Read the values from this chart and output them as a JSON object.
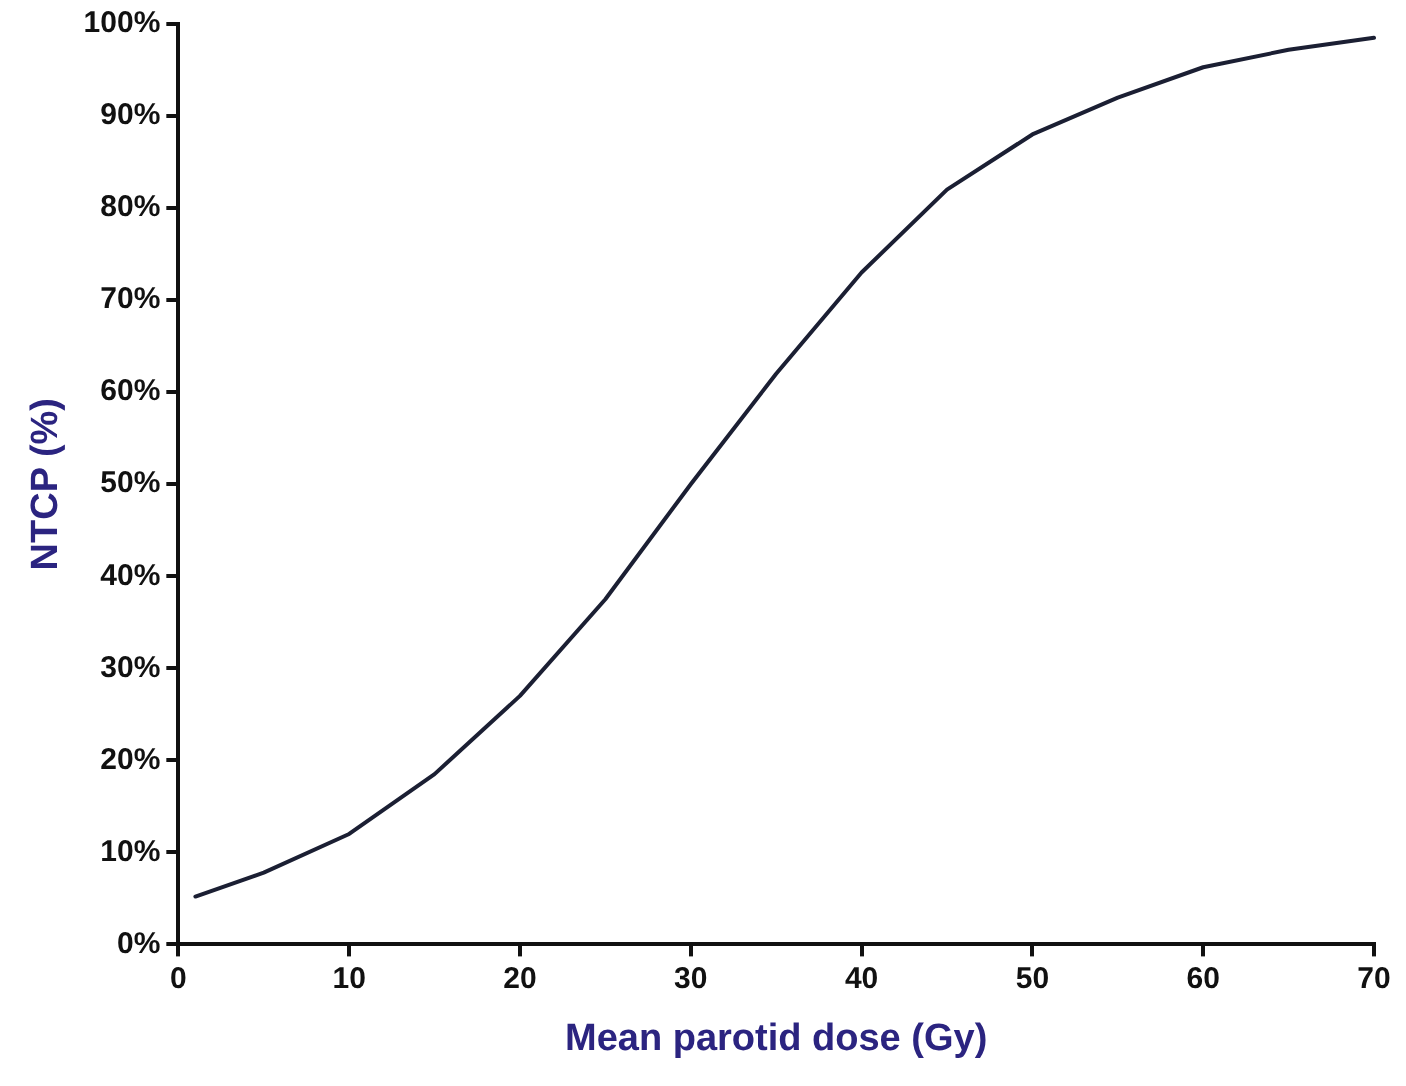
{
  "chart_data": {
    "type": "line",
    "xlabel": "Mean parotid dose (Gy)",
    "ylabel": "NTCP (%)",
    "x": [
      1,
      5,
      10,
      15,
      20,
      25,
      30,
      35,
      40,
      45,
      50,
      55,
      60,
      65,
      70
    ],
    "series": [
      {
        "color": "#1b1f33",
        "values": [
          5.2,
          7.8,
          12,
          18.5,
          27,
          37.5,
          50,
          62,
          73,
          82,
          88,
          92,
          95.3,
          97.2,
          98.5
        ]
      }
    ],
    "xlim": [
      0,
      70
    ],
    "xticks": [
      0,
      10,
      20,
      30,
      40,
      50,
      60,
      70
    ],
    "ylim": [
      0,
      100
    ],
    "yticks": [
      {
        "value": 0,
        "label": "0%"
      },
      {
        "value": 10,
        "label": "10%"
      },
      {
        "value": 20,
        "label": "20%"
      },
      {
        "value": 30,
        "label": "30%"
      },
      {
        "value": 40,
        "label": "40%"
      },
      {
        "value": 50,
        "label": "50%"
      },
      {
        "value": 60,
        "label": "60%"
      },
      {
        "value": 70,
        "label": "70%"
      },
      {
        "value": 80,
        "label": "80%"
      },
      {
        "value": 90,
        "label": "90%"
      },
      {
        "value": 100,
        "label": "100%"
      }
    ],
    "grid": false,
    "legend": false,
    "marker": "none",
    "line_style": "solid"
  }
}
